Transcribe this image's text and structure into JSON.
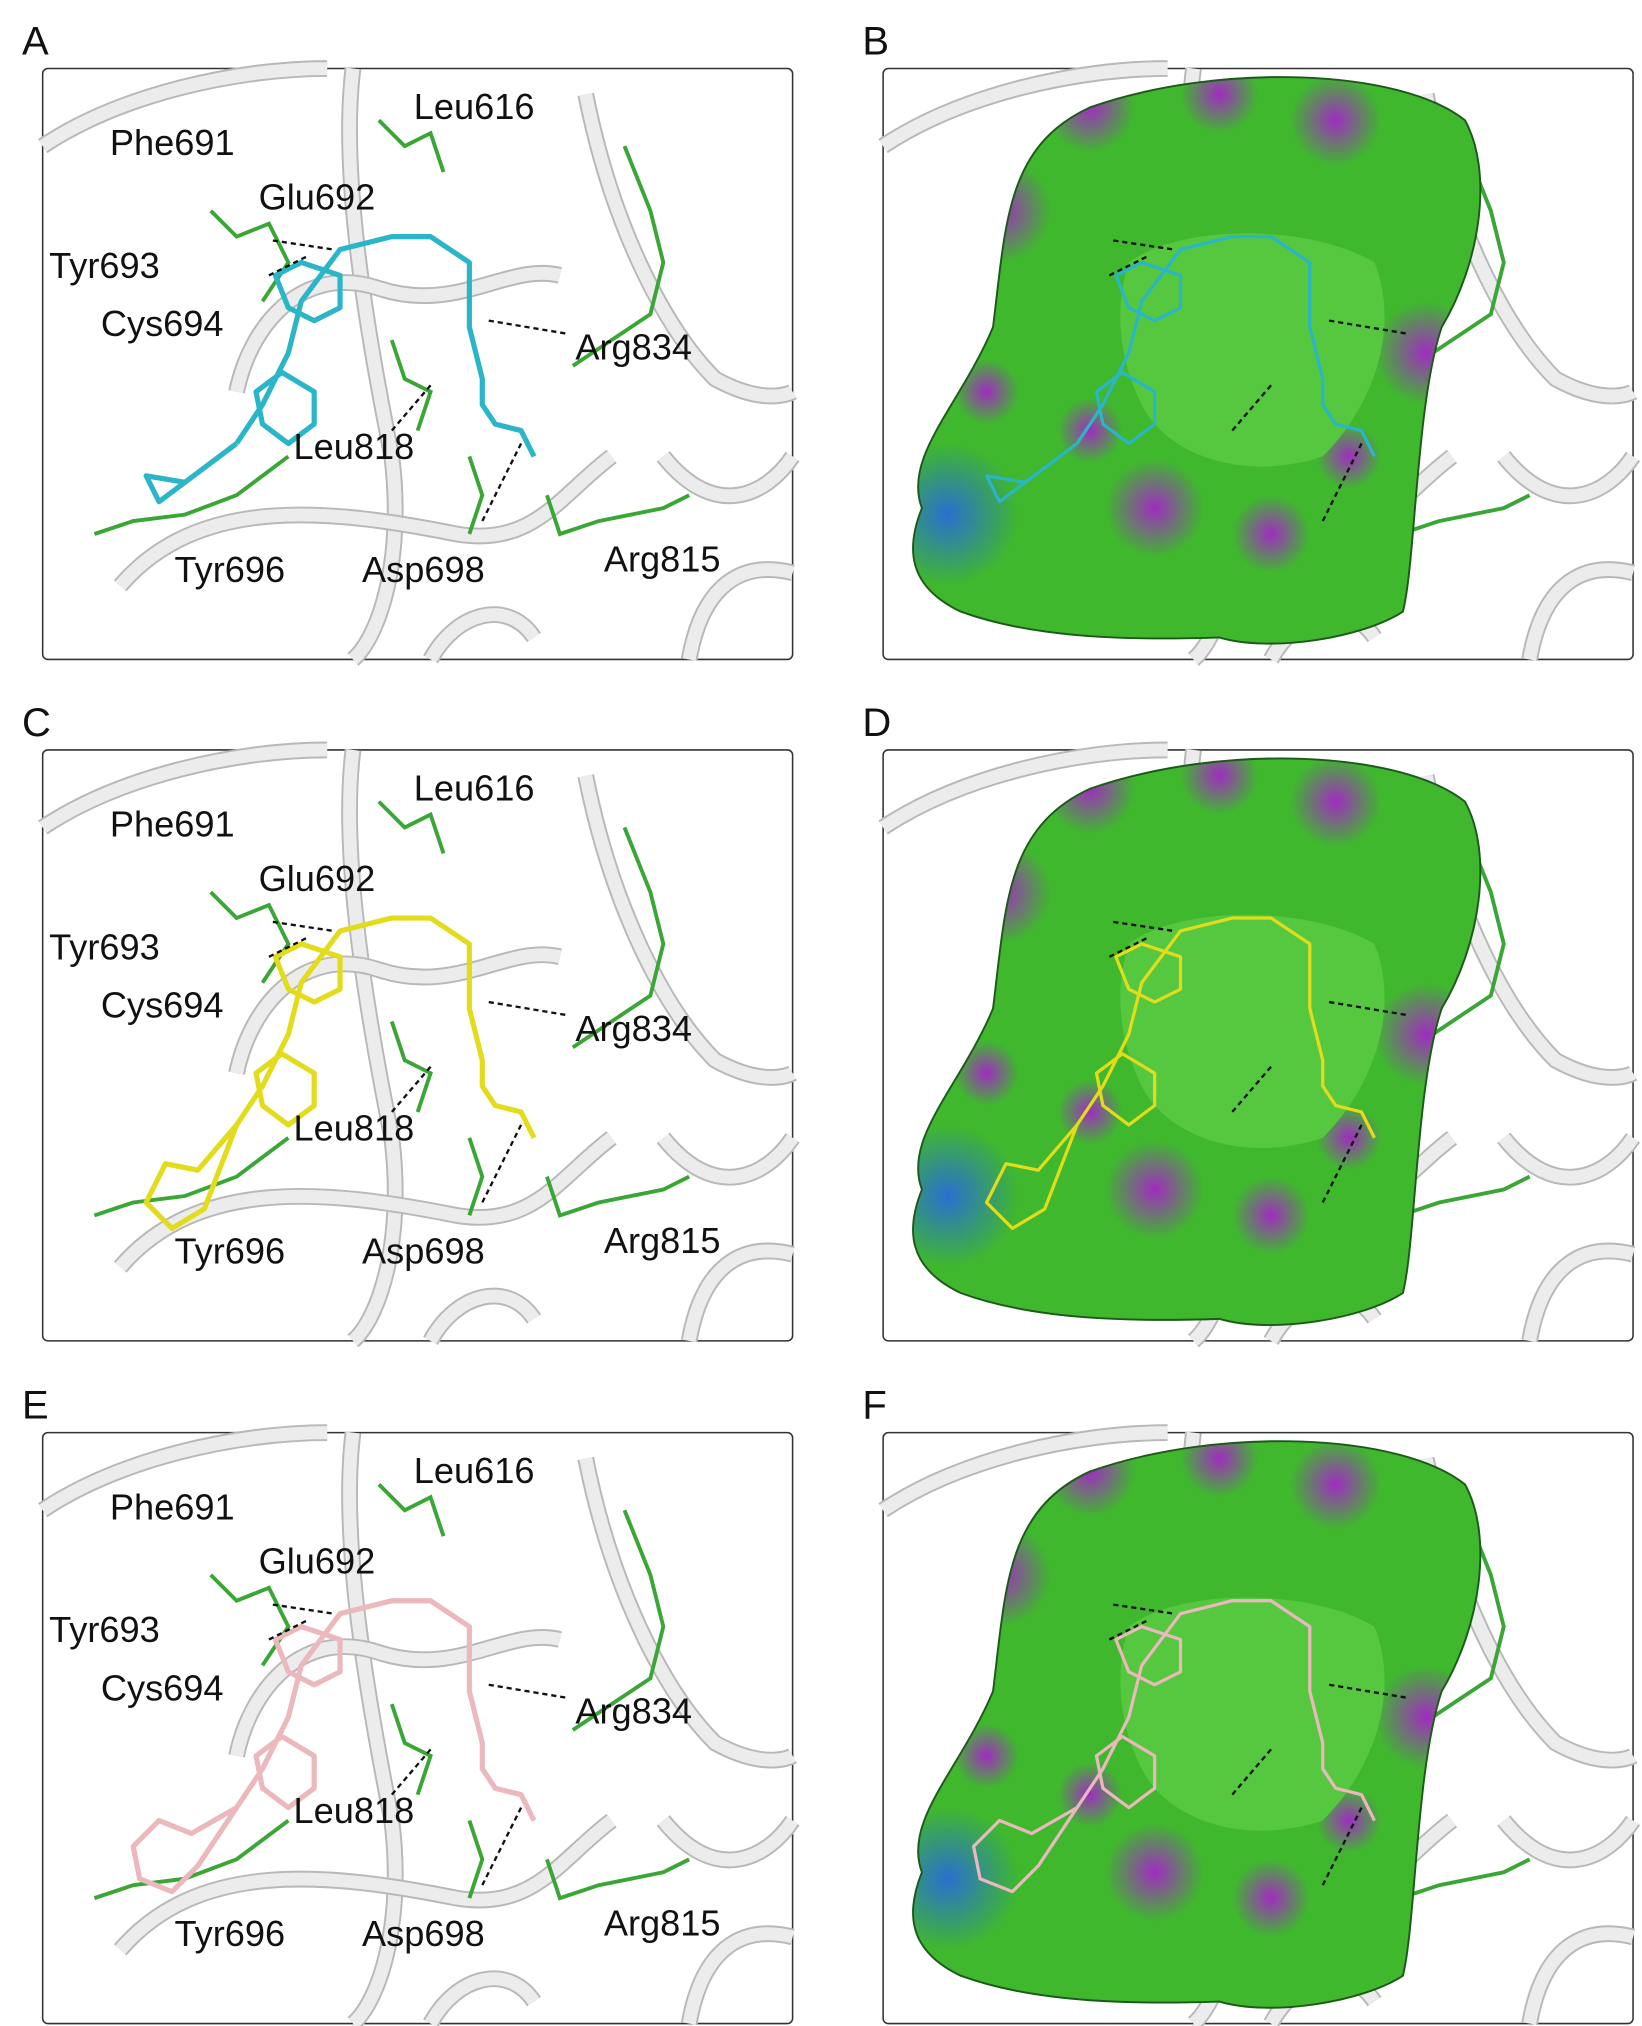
{
  "panels": [
    {
      "letter": "A",
      "labels": [
        "Leu616",
        "Phe691",
        "Glu692",
        "Tyr693",
        "Cys694",
        "Arg834",
        "Leu818",
        "Tyr696",
        "Asp698",
        "Arg815"
      ],
      "ligand_color": "#2ab5c8"
    },
    {
      "letter": "B",
      "ligand_color": "#2ab5c8"
    },
    {
      "letter": "C",
      "labels": [
        "Leu616",
        "Phe691",
        "Glu692",
        "Tyr693",
        "Cys694",
        "Arg834",
        "Leu818",
        "Tyr696",
        "Asp698",
        "Arg815"
      ],
      "ligand_color": "#e3dc1c"
    },
    {
      "letter": "D",
      "ligand_color": "#e3dc1c"
    },
    {
      "letter": "E",
      "labels": [
        "Leu616",
        "Phe691",
        "Glu692",
        "Tyr693",
        "Cys694",
        "Arg834",
        "Leu818",
        "Tyr696",
        "Asp698",
        "Arg815"
      ],
      "ligand_color": "#eab8bd"
    },
    {
      "letter": "F",
      "ligand_color": "#eab8bd"
    }
  ]
}
